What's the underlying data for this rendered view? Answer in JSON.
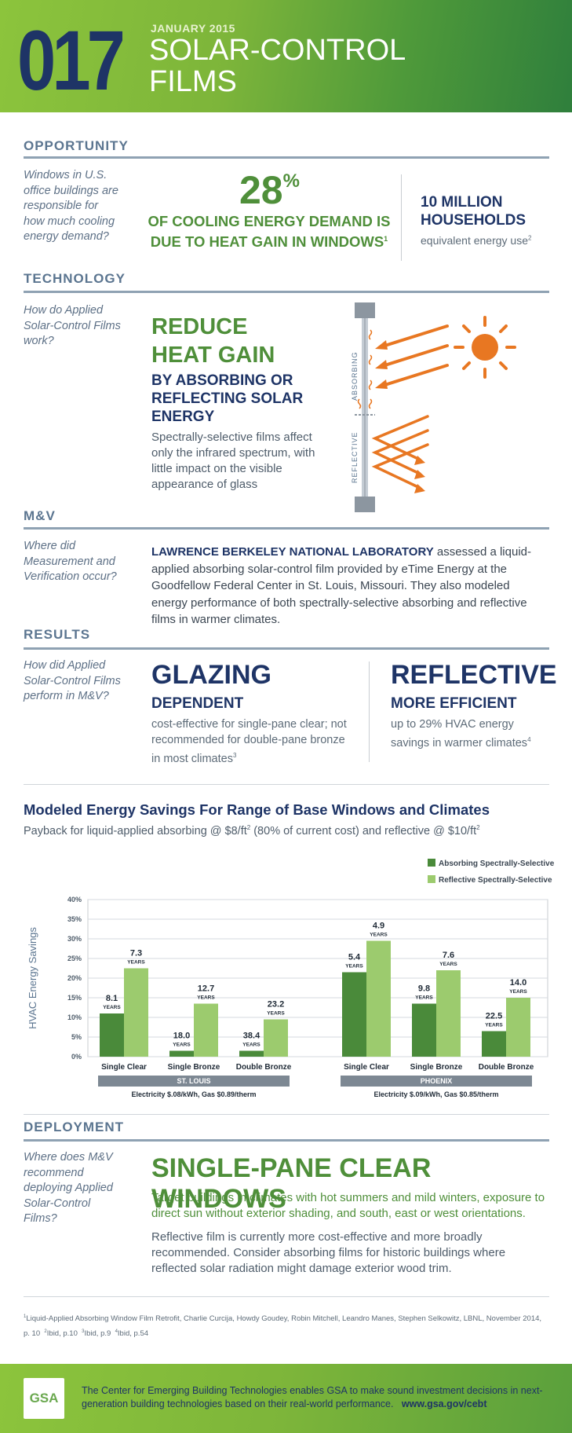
{
  "header": {
    "number": "017",
    "date": "JANUARY 2015",
    "title_line1": "SOLAR-CONTROL",
    "title_line2": "FILMS"
  },
  "opportunity": {
    "title": "OPPORTUNITY",
    "question": "Windows in U.S. office buildings are responsible for how much cooling energy demand?",
    "big_value": "28",
    "big_unit": "%",
    "big_text_line1": "OF COOLING ENERGY DEMAND IS",
    "big_text_line2": "DUE TO HEAT GAIN IN WINDOWS",
    "big_text_ref": "1",
    "right_title_line1": "10 MILLION",
    "right_title_line2": "HOUSEHOLDS",
    "right_sub": "equivalent energy use",
    "right_ref": "2"
  },
  "technology": {
    "title": "TECHNOLOGY",
    "question": "How do Applied Solar-Control Films work?",
    "head_line1": "REDUCE",
    "head_line2": "HEAT GAIN",
    "sub_line1": "BY ABSORBING OR",
    "sub_line2": "REFLECTING SOLAR",
    "sub_line3": "ENERGY",
    "desc": "Spectrally-selective films affect only the infrared spectrum, with little impact on the visible appearance of glass",
    "diagram_label_top": "ABSORBING",
    "diagram_label_bottom": "REFLECTIVE",
    "colors": {
      "accent": "#e87722",
      "frame": "#8c96a0"
    }
  },
  "mv": {
    "title": "M&V",
    "question": "Where did Measurement and Verification occur?",
    "lead": "LAWRENCE BERKELEY NATIONAL LABORATORY",
    "text": " assessed a liquid-applied absorbing solar-control film provided by eTime Energy at the Goodfellow Federal Center in St. Louis, Missouri. They also modeled energy performance of both spectrally-selective absorbing and reflective films in warmer climates."
  },
  "results": {
    "title": "RESULTS",
    "question": "How did Applied Solar-Control Films perform in M&V?",
    "left_big": "GLAZING",
    "left_sub": "DEPENDENT",
    "left_desc": "cost-effective for single-pane clear; not recommended for double-pane bronze in most climates",
    "left_ref": "3",
    "right_big": "REFLECTIVE",
    "right_sub": "MORE EFFICIENT",
    "right_desc": "up to 29% HVAC energy savings in warmer climates",
    "right_ref": "4"
  },
  "chart_data": {
    "type": "bar",
    "title": "Modeled Energy Savings For Range of Base Windows and Climates",
    "subtitle_pre": "Payback for liquid-applied absorbing @ $8/ft",
    "subtitle_mid": " (80% of current cost) and reflective @ $10/ft",
    "subtitle_sup": "2",
    "ylabel": "HVAC Energy Savings",
    "ylim": [
      0,
      40
    ],
    "yticks": [
      "0%",
      "5%",
      "10%",
      "15%",
      "20%",
      "25%",
      "30%",
      "35%",
      "40%"
    ],
    "years_label": "YEARS",
    "legend": [
      "Absorbing Spectrally-Selective",
      "Reflective Spectrally-Selective"
    ],
    "colors": {
      "absorbing": "#4a8a3a",
      "reflective": "#9ccb6e"
    },
    "groups": [
      {
        "name": "ST. LOUIS",
        "note": "Electricity $.08/kWh, Gas $0.89/therm",
        "categories": [
          "Single Clear",
          "Single Bronze",
          "Double Bronze"
        ],
        "absorbing": [
          11,
          1.5,
          1.5
        ],
        "reflective": [
          22.5,
          13.5,
          9.5
        ],
        "absorbing_years": [
          "8.1",
          "18.0",
          "38.4"
        ],
        "reflective_years": [
          "7.3",
          "12.7",
          "23.2"
        ]
      },
      {
        "name": "PHOENIX",
        "note": "Electricity $.09/kWh, Gas $0.85/therm",
        "categories": [
          "Single Clear",
          "Single Bronze",
          "Double Bronze"
        ],
        "absorbing": [
          21.5,
          13.5,
          6.5
        ],
        "reflective": [
          29.5,
          22,
          15
        ],
        "absorbing_years": [
          "5.4",
          "9.8",
          "22.5"
        ],
        "reflective_years": [
          "4.9",
          "7.6",
          "14.0"
        ]
      }
    ]
  },
  "deployment": {
    "title": "DEPLOYMENT",
    "question": "Where does M&V recommend deploying Applied Solar-Control Films?",
    "big": "SINGLE-PANE CLEAR WINDOWS",
    "green_text": "Target buildings in climates with hot summers and mild winters, exposure to direct sun without exterior shading, and south, east or west orientations.",
    "text": "Reflective film is currently more cost-effective and more broadly recommended. Consider absorbing films for historic buildings where reflected solar radiation might damage exterior wood trim."
  },
  "footnotes": {
    "n1": "1",
    "t1": "Liquid-Applied Absorbing Window Film Retrofit, Charlie Curcija, Howdy Goudey, Robin Mitchell, Leandro Manes, Stephen Selkowitz, LBNL, November 2014, p. 10",
    "n2": "2",
    "t2": "Ibid, p.10",
    "n3": "3",
    "t3": "Ibid, p.9",
    "n4": "4",
    "t4": "Ibid, p.54"
  },
  "footer": {
    "logo": "GSA",
    "text": "The Center for Emerging Building Technologies enables GSA to make sound investment decisions in next-generation building technologies based on their real-world performance.",
    "link": "www.gsa.gov/cebt"
  }
}
